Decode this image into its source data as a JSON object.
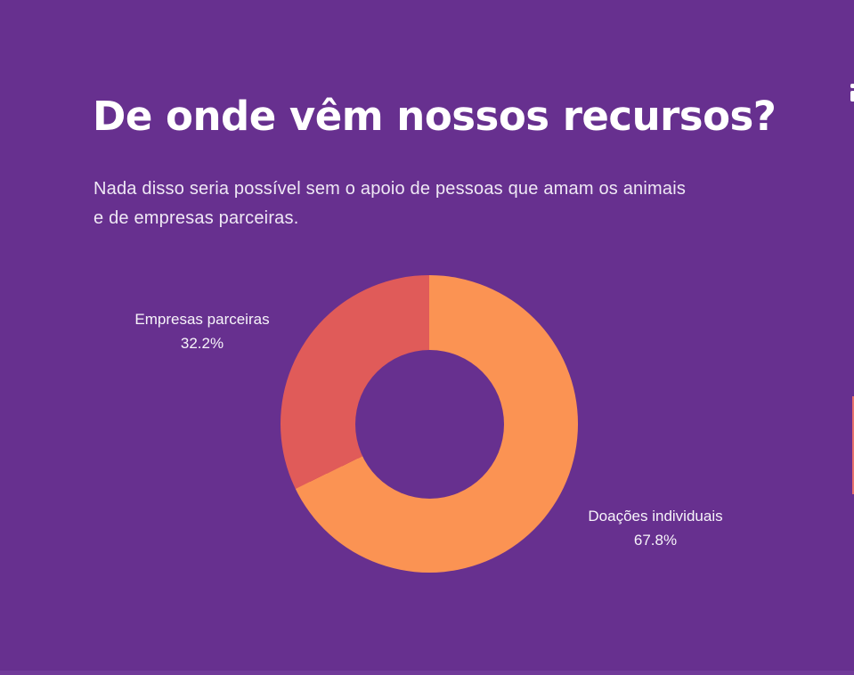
{
  "colors": {
    "background": "#67308F",
    "bottom_edge": "#713A99",
    "title_text": "#FFFFFF",
    "body_text": "#EFE8F5",
    "label_text": "#F7F4FA",
    "edge_fragment_white": "#FFFFFF",
    "edge_fragment_coral": "#E8706B"
  },
  "header": {
    "title": "De onde vêm nossos recursos?",
    "subtitle_lines": [
      "Nada disso seria possível sem o apoio de pessoas que amam os animais",
      "e de empresas parceiras."
    ]
  },
  "chart_data": {
    "type": "pie",
    "subtype": "donut",
    "title": "",
    "start_angle_deg": 0,
    "direction": "clockwise",
    "inner_radius_ratio": 0.5,
    "legend_position": "labels-outside",
    "slices": [
      {
        "label": "Doações individuais",
        "value": 67.8,
        "pct_label": "67.8%",
        "color": "#FB9353"
      },
      {
        "label": "Empresas parceiras",
        "value": 32.2,
        "pct_label": "32.2%",
        "color": "#E05B59"
      }
    ]
  }
}
